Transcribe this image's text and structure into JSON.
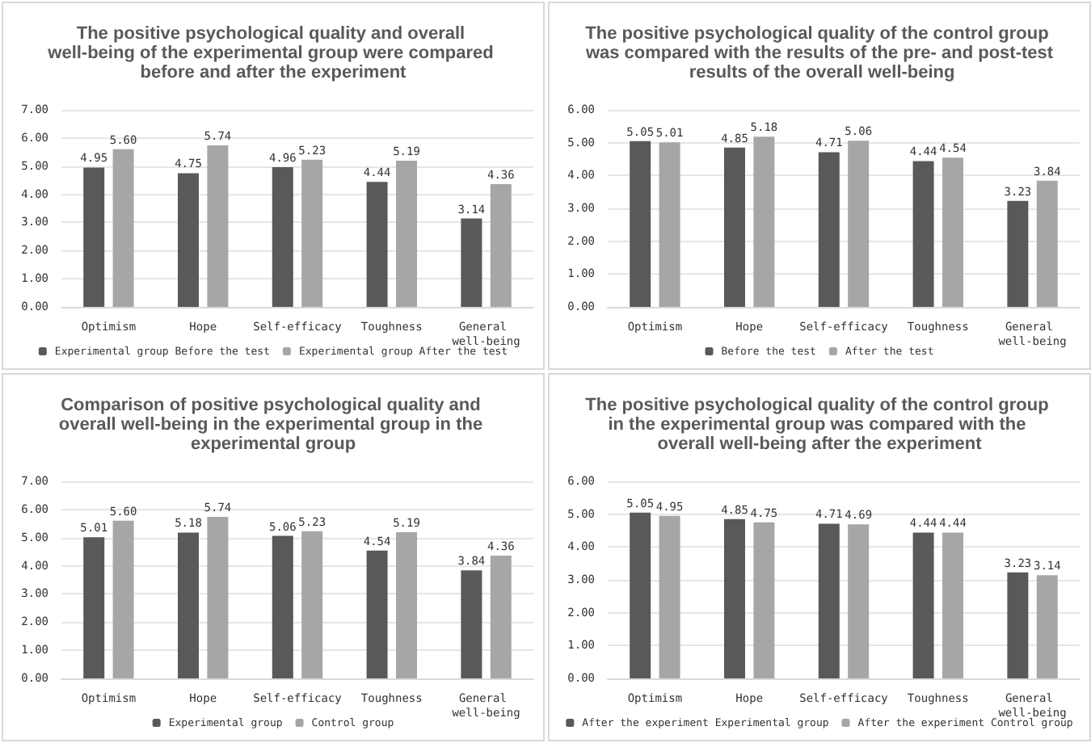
{
  "chart_data": [
    {
      "type": "bar",
      "title": "The positive psychological quality and overall well-being of the experimental group were compared before and after the experiment",
      "categories": [
        "Optimism",
        "Hope",
        "Self-efficacy",
        "Toughness",
        "General well-being"
      ],
      "series": [
        {
          "name": "Experimental group Before the test",
          "color": "#595959",
          "values": [
            4.95,
            4.75,
            4.96,
            4.44,
            3.14
          ],
          "value_labels": [
            "4.95",
            "4.75",
            "4.96",
            "4.44",
            "3.14"
          ]
        },
        {
          "name": "Experimental group After the test",
          "color": "#a6a6a6",
          "values": [
            5.6,
            5.74,
            5.23,
            5.19,
            4.36
          ],
          "value_labels": [
            "5.60",
            "5.74",
            "5.23",
            "5.19",
            "4.36"
          ]
        }
      ],
      "ylim": [
        0,
        7
      ],
      "yticks": [
        {
          "value": 0,
          "label": "0.00"
        },
        {
          "value": 1,
          "label": "1.00"
        },
        {
          "value": 2,
          "label": "2.00"
        },
        {
          "value": 3,
          "label": "3.00"
        },
        {
          "value": 4,
          "label": "4.00"
        },
        {
          "value": 5,
          "label": "5.00"
        },
        {
          "value": 6,
          "label": "6.00"
        },
        {
          "value": 7,
          "label": "7.00"
        }
      ],
      "grid": "y",
      "legend": "bottom"
    },
    {
      "type": "bar",
      "title": "The positive psychological quality of the control group was compared with the results of the pre- and post-test results of the overall well-being",
      "categories": [
        "Optimism",
        "Hope",
        "Self-efficacy",
        "Toughness",
        "General well-being"
      ],
      "series": [
        {
          "name": "Before the test",
          "color": "#595959",
          "values": [
            5.05,
            4.85,
            4.71,
            4.44,
            3.23
          ],
          "value_labels": [
            "5.05",
            "4.85",
            "4.71",
            "4.44",
            "3.23"
          ]
        },
        {
          "name": "After the test",
          "color": "#a6a6a6",
          "values": [
            5.01,
            5.18,
            5.06,
            4.54,
            3.84
          ],
          "value_labels": [
            "5.01",
            "5.18",
            "5.06",
            "4.54",
            "3.84"
          ]
        }
      ],
      "ylim": [
        0,
        6
      ],
      "yticks": [
        {
          "value": 0,
          "label": "0.00"
        },
        {
          "value": 1,
          "label": "1.00"
        },
        {
          "value": 2,
          "label": "2.00"
        },
        {
          "value": 3,
          "label": "3.00"
        },
        {
          "value": 4,
          "label": "4.00"
        },
        {
          "value": 5,
          "label": "5.00"
        },
        {
          "value": 6,
          "label": "6.00"
        }
      ],
      "grid": "y",
      "legend": "bottom"
    },
    {
      "type": "bar",
      "title": "Comparison of positive psychological quality and overall well-being in the experimental group in the experimental group",
      "categories": [
        "Optimism",
        "Hope",
        "Self-efficacy",
        "Toughness",
        "General well-being"
      ],
      "series": [
        {
          "name": "Experimental group",
          "color": "#595959",
          "values": [
            5.01,
            5.18,
            5.06,
            4.54,
            3.84
          ],
          "value_labels": [
            "5.01",
            "5.18",
            "5.06",
            "4.54",
            "3.84"
          ]
        },
        {
          "name": "Control group",
          "color": "#a6a6a6",
          "values": [
            5.6,
            5.74,
            5.23,
            5.19,
            4.36
          ],
          "value_labels": [
            "5.60",
            "5.74",
            "5.23",
            "5.19",
            "4.36"
          ]
        }
      ],
      "ylim": [
        0,
        7
      ],
      "yticks": [
        {
          "value": 0,
          "label": "0.00"
        },
        {
          "value": 1,
          "label": "1.00"
        },
        {
          "value": 2,
          "label": "2.00"
        },
        {
          "value": 3,
          "label": "3.00"
        },
        {
          "value": 4,
          "label": "4.00"
        },
        {
          "value": 5,
          "label": "5.00"
        },
        {
          "value": 6,
          "label": "6.00"
        },
        {
          "value": 7,
          "label": "7.00"
        }
      ],
      "grid": "y",
      "legend": "bottom"
    },
    {
      "type": "bar",
      "title": "The positive psychological quality of the control group in the experimental group was compared with the overall well-being after the experiment",
      "categories": [
        "Optimism",
        "Hope",
        "Self-efficacy",
        "Toughness",
        "General well-being"
      ],
      "series": [
        {
          "name": "After the experiment Experimental group",
          "color": "#595959",
          "values": [
            5.05,
            4.85,
            4.71,
            4.44,
            3.23
          ],
          "value_labels": [
            "5.05",
            "4.85",
            "4.71",
            "4.44",
            "3.23"
          ]
        },
        {
          "name": "After the experiment Control group",
          "color": "#a6a6a6",
          "values": [
            4.95,
            4.75,
            4.69,
            4.44,
            3.14
          ],
          "value_labels": [
            "4.95",
            "4.75",
            "4.69",
            "4.44",
            "3.14"
          ]
        }
      ],
      "ylim": [
        0,
        6
      ],
      "yticks": [
        {
          "value": 0,
          "label": "0.00"
        },
        {
          "value": 1,
          "label": "1.00"
        },
        {
          "value": 2,
          "label": "2.00"
        },
        {
          "value": 3,
          "label": "3.00"
        },
        {
          "value": 4,
          "label": "4.00"
        },
        {
          "value": 5,
          "label": "5.00"
        },
        {
          "value": 6,
          "label": "6.00"
        }
      ],
      "grid": "y",
      "legend": "bottom"
    }
  ]
}
